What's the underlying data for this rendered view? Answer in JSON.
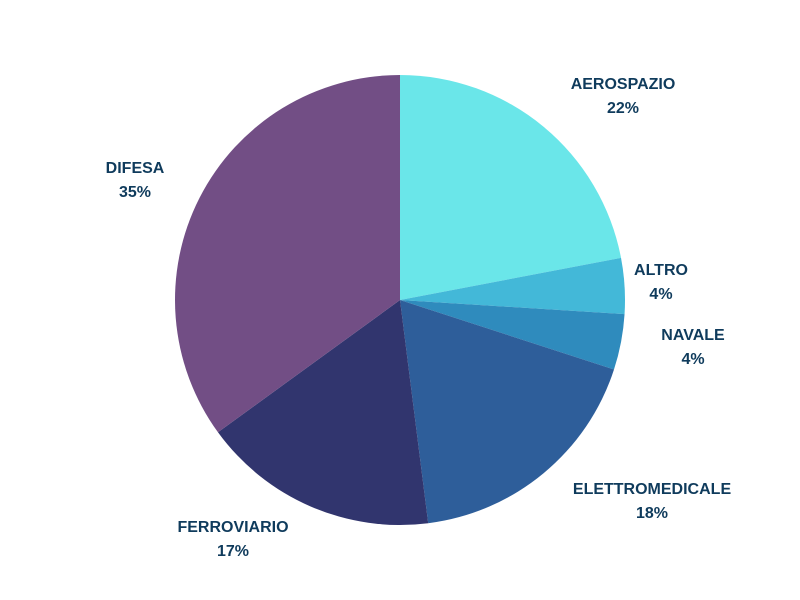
{
  "chart_data": {
    "type": "pie",
    "title": "",
    "legend": "none",
    "start_angle_deg": 0,
    "direction": "clockwise",
    "slices": [
      {
        "label": "AEROSPAZIO",
        "value": 22,
        "value_label": "22%",
        "color": "#6ae6e9"
      },
      {
        "label": "ALTRO",
        "value": 4,
        "value_label": "4%",
        "color": "#43b8d8"
      },
      {
        "label": "NAVALE",
        "value": 4,
        "value_label": "4%",
        "color": "#2f8bbd"
      },
      {
        "label": "ELETTROMEDICALE",
        "value": 18,
        "value_label": "18%",
        "color": "#2e5e9a"
      },
      {
        "label": "FERROVIARIO",
        "value": 17,
        "value_label": "17%",
        "color": "#31356e"
      },
      {
        "label": "DIFESA",
        "value": 35,
        "value_label": "35%",
        "color": "#724e85"
      }
    ]
  }
}
